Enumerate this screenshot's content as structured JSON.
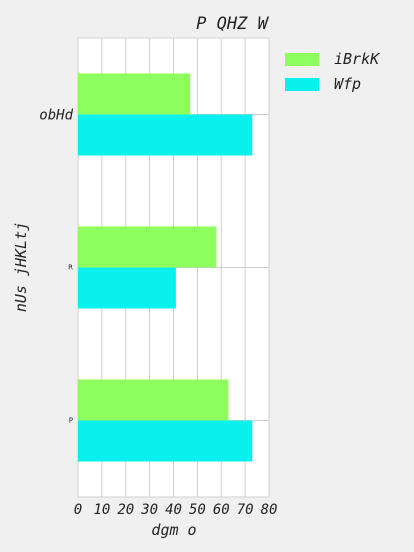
{
  "chart_data": {
    "type": "bar",
    "orientation": "horizontal",
    "title": "P QHZ W",
    "xlabel": "dgm o",
    "ylabel": "nUs jHKLtj",
    "categories": [
      "obHd",
      "R",
      "P"
    ],
    "series": [
      {
        "name": "iBrkK",
        "color": "#8efd5e",
        "values": [
          47,
          58,
          63
        ]
      },
      {
        "name": "Wfp",
        "color": "#0af0ec",
        "values": [
          73,
          41,
          73
        ]
      }
    ],
    "xlim": [
      0,
      80
    ],
    "xticks": [
      "0",
      "10",
      "20",
      "30",
      "40",
      "50",
      "60",
      "70",
      "80"
    ],
    "grid": true,
    "legend_position": "upper-right-outside"
  }
}
